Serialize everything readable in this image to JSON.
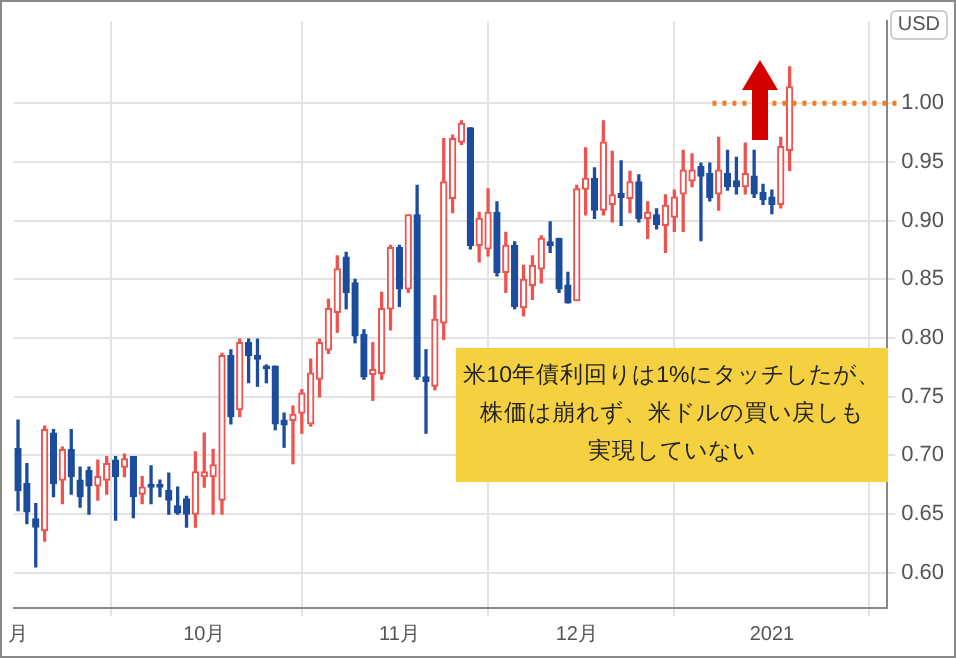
{
  "chart_data": {
    "type": "candlestick",
    "ylabel": "USD",
    "categories": [
      "月",
      null,
      null,
      null,
      null,
      null,
      null,
      null,
      null,
      null,
      null,
      null,
      null,
      null,
      null,
      null,
      null,
      null,
      null,
      null,
      null,
      "10月",
      null,
      null,
      null,
      null,
      null,
      null,
      null,
      null,
      null,
      null,
      null,
      null,
      null,
      null,
      null,
      null,
      null,
      null,
      null,
      null,
      null,
      "11月",
      null,
      null,
      null,
      null,
      null,
      null,
      null,
      null,
      null,
      null,
      null,
      null,
      null,
      null,
      null,
      null,
      null,
      null,
      null,
      "12月",
      null,
      null,
      null,
      null,
      null,
      null,
      null,
      null,
      null,
      null,
      null,
      null,
      null,
      null,
      null,
      null,
      null,
      null,
      null,
      null,
      null,
      "2021",
      null,
      null
    ],
    "ohlc": [
      [
        0.706,
        0.73,
        0.653,
        0.67
      ],
      [
        0.676,
        0.693,
        0.642,
        0.652
      ],
      [
        0.646,
        0.659,
        0.605,
        0.639
      ],
      [
        0.636,
        0.725,
        0.627,
        0.722
      ],
      [
        0.719,
        0.722,
        0.665,
        0.676
      ],
      [
        0.679,
        0.707,
        0.659,
        0.705
      ],
      [
        0.705,
        0.722,
        0.667,
        0.682
      ],
      [
        0.679,
        0.69,
        0.656,
        0.665
      ],
      [
        0.687,
        0.69,
        0.65,
        0.674
      ],
      [
        0.674,
        0.696,
        0.662,
        0.682
      ],
      [
        0.679,
        0.699,
        0.667,
        0.693
      ],
      [
        0.696,
        0.699,
        0.645,
        0.682
      ],
      [
        0.69,
        0.701,
        0.682,
        0.697
      ],
      [
        0.699,
        0.699,
        0.647,
        0.665
      ],
      [
        0.667,
        0.682,
        0.659,
        0.673
      ],
      [
        0.675,
        0.691,
        0.659,
        0.673
      ],
      [
        0.675,
        0.679,
        0.665,
        0.673
      ],
      [
        0.67,
        0.685,
        0.65,
        0.662
      ],
      [
        0.657,
        0.673,
        0.65,
        0.651
      ],
      [
        0.663,
        0.665,
        0.639,
        0.65
      ],
      [
        0.65,
        0.703,
        0.639,
        0.686
      ],
      [
        0.682,
        0.719,
        0.673,
        0.686
      ],
      [
        0.682,
        0.705,
        0.65,
        0.692
      ],
      [
        0.662,
        0.787,
        0.65,
        0.785
      ],
      [
        0.785,
        0.79,
        0.727,
        0.733
      ],
      [
        0.739,
        0.799,
        0.733,
        0.796
      ],
      [
        0.796,
        0.799,
        0.762,
        0.785
      ],
      [
        0.785,
        0.799,
        0.759,
        0.782
      ],
      [
        0.776,
        0.777,
        0.762,
        0.774
      ],
      [
        0.776,
        0.776,
        0.722,
        0.727
      ],
      [
        0.73,
        0.736,
        0.707,
        0.726
      ],
      [
        0.73,
        0.742,
        0.693,
        0.735
      ],
      [
        0.736,
        0.756,
        0.719,
        0.753
      ],
      [
        0.727,
        0.782,
        0.725,
        0.77
      ],
      [
        0.765,
        0.799,
        0.75,
        0.796
      ],
      [
        0.79,
        0.833,
        0.787,
        0.825
      ],
      [
        0.822,
        0.87,
        0.805,
        0.859
      ],
      [
        0.869,
        0.873,
        0.825,
        0.839
      ],
      [
        0.847,
        0.85,
        0.796,
        0.802
      ],
      [
        0.803,
        0.807,
        0.765,
        0.767
      ],
      [
        0.769,
        0.796,
        0.747,
        0.773
      ],
      [
        0.77,
        0.839,
        0.765,
        0.825
      ],
      [
        0.825,
        0.879,
        0.807,
        0.877
      ],
      [
        0.877,
        0.879,
        0.827,
        0.842
      ],
      [
        0.842,
        0.905,
        0.839,
        0.905
      ],
      [
        0.905,
        0.93,
        0.765,
        0.767
      ],
      [
        0.767,
        0.79,
        0.719,
        0.763
      ],
      [
        0.759,
        0.836,
        0.756,
        0.816
      ],
      [
        0.813,
        0.97,
        0.799,
        0.933
      ],
      [
        0.919,
        0.973,
        0.907,
        0.97
      ],
      [
        0.967,
        0.985,
        0.965,
        0.983
      ],
      [
        0.979,
        0.979,
        0.876,
        0.879
      ],
      [
        0.879,
        0.907,
        0.865,
        0.902
      ],
      [
        0.876,
        0.927,
        0.87,
        0.907
      ],
      [
        0.907,
        0.916,
        0.853,
        0.856
      ],
      [
        0.856,
        0.89,
        0.839,
        0.879
      ],
      [
        0.879,
        0.882,
        0.825,
        0.827
      ],
      [
        0.826,
        0.862,
        0.819,
        0.85
      ],
      [
        0.845,
        0.87,
        0.833,
        0.862
      ],
      [
        0.859,
        0.887,
        0.847,
        0.885
      ],
      [
        0.882,
        0.899,
        0.873,
        0.879
      ],
      [
        0.885,
        0.885,
        0.839,
        0.842
      ],
      [
        0.845,
        0.856,
        0.83,
        0.83
      ],
      [
        0.832,
        0.93,
        0.832,
        0.927
      ],
      [
        0.927,
        0.962,
        0.905,
        0.936
      ],
      [
        0.936,
        0.945,
        0.902,
        0.909
      ],
      [
        0.909,
        0.985,
        0.905,
        0.967
      ],
      [
        0.914,
        0.959,
        0.899,
        0.922
      ],
      [
        0.923,
        0.951,
        0.896,
        0.92
      ],
      [
        0.919,
        0.942,
        0.907,
        0.933
      ],
      [
        0.933,
        0.939,
        0.899,
        0.902
      ],
      [
        0.902,
        0.916,
        0.885,
        0.907
      ],
      [
        0.905,
        0.91,
        0.893,
        0.897
      ],
      [
        0.896,
        0.922,
        0.873,
        0.913
      ],
      [
        0.903,
        0.926,
        0.891,
        0.92
      ],
      [
        0.923,
        0.96,
        0.891,
        0.943
      ],
      [
        0.934,
        0.957,
        0.929,
        0.943
      ],
      [
        0.946,
        0.949,
        0.883,
        0.938
      ],
      [
        0.94,
        0.949,
        0.917,
        0.92
      ],
      [
        0.923,
        0.971,
        0.909,
        0.943
      ],
      [
        0.94,
        0.96,
        0.926,
        0.929
      ],
      [
        0.934,
        0.954,
        0.923,
        0.929
      ],
      [
        0.929,
        0.966,
        0.923,
        0.94
      ],
      [
        0.938,
        0.96,
        0.92,
        0.923
      ],
      [
        0.924,
        0.931,
        0.914,
        0.918
      ],
      [
        0.92,
        0.926,
        0.906,
        0.914
      ],
      [
        0.914,
        0.971,
        0.911,
        0.963
      ],
      [
        0.96,
        1.031,
        0.943,
        1.014
      ]
    ],
    "colors": [
      "#1c4d9c",
      "#1c4d9c",
      "#1c4d9c",
      "#ef5350",
      "#1c4d9c",
      "#ef5350",
      "#1c4d9c",
      "#1c4d9c",
      "#1c4d9c",
      "#ef5350",
      "#ef5350",
      "#1c4d9c",
      "#ef5350",
      "#1c4d9c",
      "#ef5350",
      "#1c4d9c",
      "#1c4d9c",
      "#1c4d9c",
      "#1c4d9c",
      "#1c4d9c",
      "#ef5350",
      "#ef5350",
      "#ef5350",
      "#ef5350",
      "#1c4d9c",
      "#ef5350",
      "#1c4d9c",
      "#1c4d9c",
      "#1c4d9c",
      "#1c4d9c",
      "#1c4d9c",
      "#ef5350",
      "#ef5350",
      "#ef5350",
      "#ef5350",
      "#ef5350",
      "#ef5350",
      "#1c4d9c",
      "#1c4d9c",
      "#1c4d9c",
      "#ef5350",
      "#ef5350",
      "#ef5350",
      "#1c4d9c",
      "#ef5350",
      "#1c4d9c",
      "#1c4d9c",
      "#ef5350",
      "#ef5350",
      "#ef5350",
      "#ef5350",
      "#1c4d9c",
      "#ef5350",
      "#ef5350",
      "#1c4d9c",
      "#ef5350",
      "#1c4d9c",
      "#ef5350",
      "#ef5350",
      "#ef5350",
      "#1c4d9c",
      "#1c4d9c",
      "#1c4d9c",
      "#ef5350",
      "#ef5350",
      "#1c4d9c",
      "#ef5350",
      "#ef5350",
      "#1c4d9c",
      "#ef5350",
      "#1c4d9c",
      "#ef5350",
      "#1c4d9c",
      "#ef5350",
      "#ef5350",
      "#ef5350",
      "#ef5350",
      "#1c4d9c",
      "#1c4d9c",
      "#ef5350",
      "#1c4d9c",
      "#1c4d9c",
      "#ef5350",
      "#1c4d9c",
      "#1c4d9c",
      "#1c4d9c",
      "#ef5350",
      "#ef5350"
    ],
    "ylim": [
      0.57,
      1.07
    ],
    "yticks": [
      {
        "value": 0.6,
        "label": "0.60"
      },
      {
        "value": 0.65,
        "label": "0.65"
      },
      {
        "value": 0.7,
        "label": "0.70"
      },
      {
        "value": 0.75,
        "label": "0.75"
      },
      {
        "value": 0.8,
        "label": "0.80"
      },
      {
        "value": 0.85,
        "label": "0.85"
      },
      {
        "value": 0.9,
        "label": "0.90"
      },
      {
        "value": 0.95,
        "label": "0.95"
      },
      {
        "value": 1,
        "label": "1.00"
      }
    ],
    "grid": true,
    "ref_lines": [
      {
        "axis": "y",
        "value": 1,
        "color": "#f07f1f",
        "line_style": "dotted"
      }
    ],
    "annotations": [
      "米10年債利回りは1%にタッチしたが、",
      "株価は崩れず、米ドルの買い戻しも",
      "実現していない"
    ]
  }
}
